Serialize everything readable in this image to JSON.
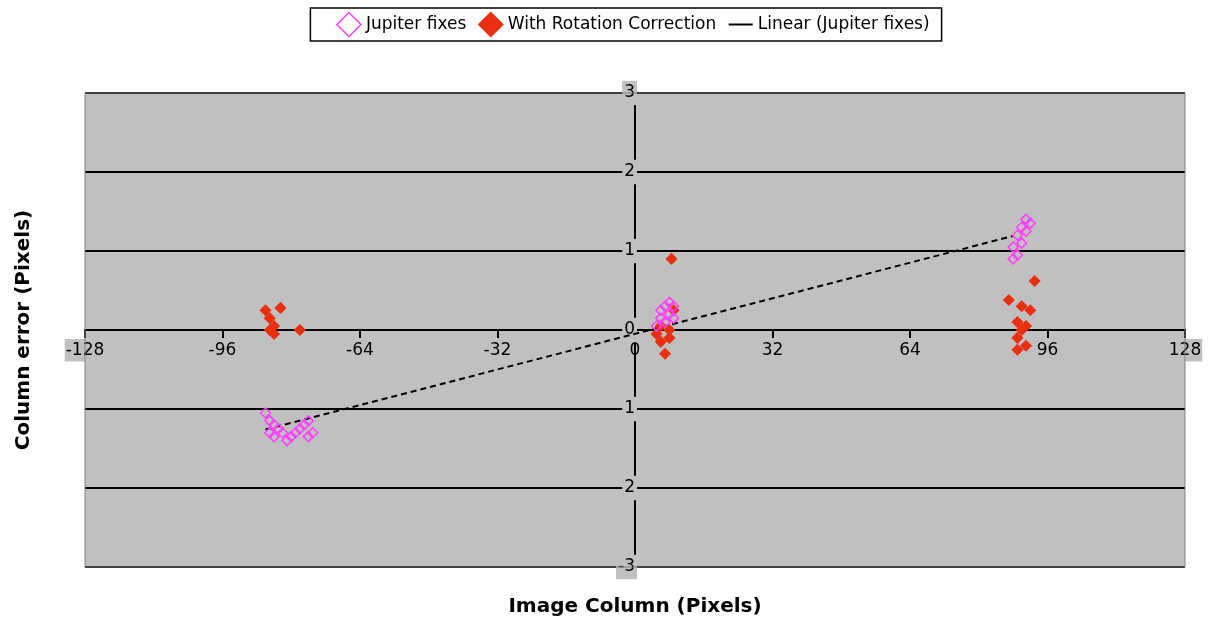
{
  "chart_data": {
    "type": "scatter",
    "xlabel": "Image Column (Pixels)",
    "ylabel": "Column error (Pixels)",
    "xlim": [
      -128,
      128
    ],
    "xticks": [
      -128,
      -96,
      -64,
      -32,
      0,
      32,
      64,
      96,
      128
    ],
    "ylim": [
      -3,
      3
    ],
    "yticks": [
      -3,
      {
        "value": -2,
        "label": "2"
      },
      {
        "value": -1,
        "label": "1"
      },
      0,
      1,
      2,
      3
    ],
    "grid": "y",
    "legend": "top",
    "series": [
      {
        "name": "Jupiter fixes",
        "color": "#ff40ff",
        "marker": "diamond",
        "x": [
          -86,
          -85,
          -85,
          -84,
          -84,
          -83,
          -82,
          -81,
          -80,
          -79,
          -78,
          -77,
          -76,
          -76,
          -75,
          5,
          6,
          6,
          7,
          7,
          8,
          8,
          9,
          9,
          88,
          88,
          89,
          89,
          90,
          90,
          91,
          91,
          92
        ],
        "values": [
          -1.05,
          -1.15,
          -1.3,
          -1.2,
          -1.35,
          -1.25,
          -1.3,
          -1.4,
          -1.35,
          -1.3,
          -1.25,
          -1.2,
          -1.15,
          -1.35,
          -1.3,
          0.05,
          0.15,
          0.25,
          0.1,
          0.3,
          0.2,
          0.35,
          0.3,
          0.15,
          0.9,
          1.05,
          0.95,
          1.2,
          1.1,
          1.3,
          1.25,
          1.4,
          1.35
        ]
      },
      {
        "name": "With Rotation Correction",
        "color": "#e83010",
        "marker": "diamond",
        "x": [
          -86,
          -85,
          -85,
          -84,
          -84,
          -82.5,
          -78,
          5,
          6,
          6,
          7,
          8,
          9,
          8.5,
          8,
          87,
          90,
          93,
          89,
          89,
          90,
          91,
          91,
          92,
          89
        ],
        "values": [
          0.25,
          0.15,
          0,
          0.05,
          -0.05,
          0.28,
          0,
          -0.05,
          0.05,
          -0.15,
          -0.3,
          0,
          0.25,
          0.9,
          -0.1,
          0.38,
          0.3,
          0.62,
          0.1,
          -0.1,
          0,
          -0.2,
          0.05,
          0.25,
          -0.25
        ]
      },
      {
        "name": "Linear (Jupiter fixes)",
        "type": "line",
        "color": "#000000",
        "marker": "none",
        "line_style": "dashed",
        "x": [
          -86,
          88
        ],
        "values": [
          -1.26,
          1.19
        ]
      }
    ]
  }
}
